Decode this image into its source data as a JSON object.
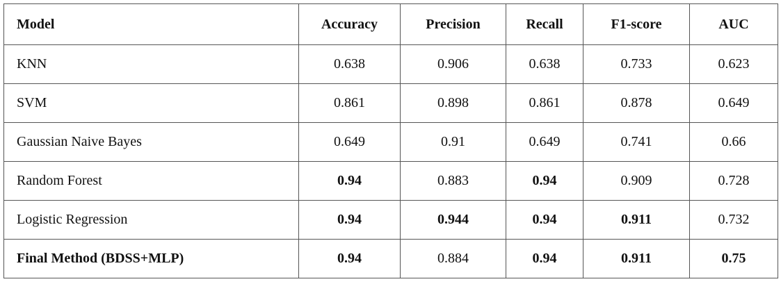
{
  "table": {
    "header": [
      "Model",
      "Accuracy",
      "Precision",
      "Recall",
      "F1-score",
      "AUC"
    ],
    "rows": [
      [
        "KNN",
        "0.638",
        "0.906",
        "0.638",
        "0.733",
        "0.623"
      ],
      [
        "SVM",
        "0.861",
        "0.898",
        "0.861",
        "0.878",
        "0.649"
      ],
      [
        "Gaussian Naive Bayes",
        "0.649",
        "0.91",
        "0.649",
        "0.741",
        "0.66"
      ],
      [
        "Random Forest",
        "0.94",
        "0.883",
        "0.94",
        "0.909",
        "0.728"
      ],
      [
        "Logistic Regression",
        "0.94",
        "0.944",
        "0.94",
        "0.911",
        "0.732"
      ],
      [
        "Final Method (BDSS+MLP)",
        "0.94",
        "0.884",
        "0.94",
        "0.911",
        "0.75"
      ]
    ],
    "bold": [
      [
        false,
        false,
        false,
        false,
        false,
        false
      ],
      [
        false,
        false,
        false,
        false,
        false,
        false
      ],
      [
        false,
        false,
        false,
        false,
        false,
        false
      ],
      [
        false,
        true,
        false,
        true,
        false,
        false
      ],
      [
        false,
        true,
        true,
        true,
        true,
        false
      ],
      [
        true,
        true,
        false,
        true,
        true,
        true
      ]
    ]
  }
}
